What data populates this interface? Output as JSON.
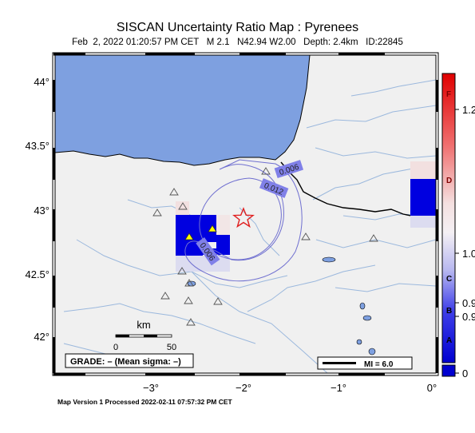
{
  "title": "SISCAN Uncertainty Ratio Map : Pyrenees",
  "subtitle": {
    "datetime": "Feb  2, 2022 01:20:57 PM CET",
    "magnitude": "M 2.1",
    "location": "N42.94 W2.00",
    "depth": "Depth: 2.4km",
    "id": "ID:22845"
  },
  "footer": "Map Version 1 Processed 2022-02-11 07:57:32 PM CET",
  "axes": {
    "x_ticks": [
      "−3°",
      "−2°",
      "−1°",
      "0°"
    ],
    "y_ticks": [
      "44°",
      "43.5°",
      "43°",
      "42.5°",
      "42°"
    ]
  },
  "contours": [
    {
      "label": "0.006"
    },
    {
      "label": "0.012"
    },
    {
      "label": "0.006"
    }
  ],
  "scale_bar": {
    "unit": "km",
    "start": "0",
    "end": "50"
  },
  "grade_box": "GRADE: – (Mean sigma: –)",
  "mi_legend": "MI = 6.0",
  "colorbar": {
    "letters": [
      "F",
      "D",
      "C",
      "B",
      "A"
    ],
    "values": [
      "1.2",
      "1.0",
      "0.9",
      "0.9",
      "0"
    ]
  },
  "colors": {
    "sea": "#7ea0e0",
    "land": "#f0f0f0",
    "border": "#000000",
    "rivers": "#9bb8dd",
    "contour": "#7070d0",
    "epicenter": "#e02020",
    "station_fill": "#ffff00",
    "grid_dark_blue": "#0000e0",
    "grid_light_pink": "#f2e0e0"
  }
}
